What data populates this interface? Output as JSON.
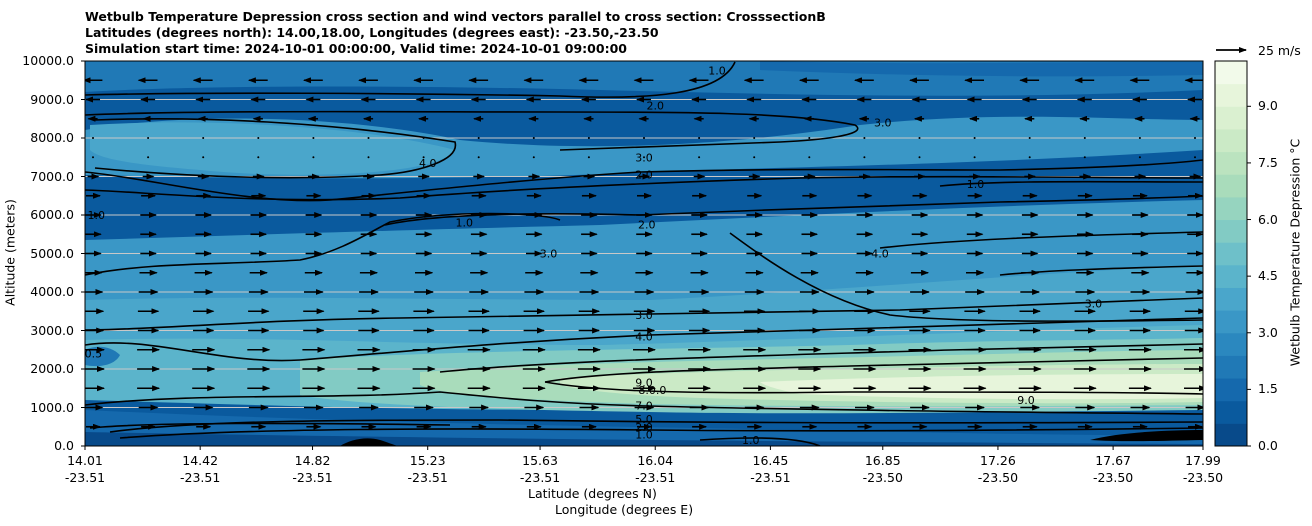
{
  "title": {
    "line1": "Wetbulb Temperature Depression cross section and wind vectors parallel to cross section: CrosssectionB",
    "line2": "Latitudes (degrees north): 14.00,18.00, Longitudes (degrees east): -23.50,-23.50",
    "line3": "Simulation start time: 2024-10-01 00:00:00, Valid time: 2024-10-01 09:00:00"
  },
  "colors": {
    "colormap": [
      "#084a8a",
      "#0a5a9e",
      "#1569ad",
      "#2079b6",
      "#2b88bf",
      "#3a97c6",
      "#4aa6cb",
      "#5bb4cb",
      "#6ec0c9",
      "#82cbc4",
      "#96d4bf",
      "#a9dcbb",
      "#bbe3bf",
      "#cbeac6",
      "#daf0d0",
      "#e7f5db",
      "#f2faea"
    ],
    "contour": "#000000",
    "grid": "#c8c8c8"
  },
  "vector_key": {
    "label": "25 m/s",
    "icon": "arrow-right-icon"
  },
  "chart_data": {
    "type": "heatmap",
    "subtype": "filled contour cross section with wind vectors",
    "xlabel": "Latitude (degrees N)",
    "xlabel2": "Longitude (degrees E)",
    "ylabel": "Altitude (meters)",
    "ylim": [
      0,
      10000
    ],
    "xlim": [
      14.01,
      17.99
    ],
    "yticks": [
      0,
      1000,
      2000,
      3000,
      4000,
      5000,
      6000,
      7000,
      8000,
      9000,
      10000
    ],
    "ytick_labels": [
      "0.0",
      "1000.0",
      "2000.0",
      "3000.0",
      "4000.0",
      "5000.0",
      "6000.0",
      "7000.0",
      "8000.0",
      "9000.0",
      "10000.0"
    ],
    "xticks": [
      {
        "lat": 14.01,
        "lat_label": "14.01",
        "lon_label": "-23.51"
      },
      {
        "lat": 14.42,
        "lat_label": "14.42",
        "lon_label": "-23.51"
      },
      {
        "lat": 14.82,
        "lat_label": "14.82",
        "lon_label": "-23.51"
      },
      {
        "lat": 15.23,
        "lat_label": "15.23",
        "lon_label": "-23.51"
      },
      {
        "lat": 15.63,
        "lat_label": "15.63",
        "lon_label": "-23.51"
      },
      {
        "lat": 16.04,
        "lat_label": "16.04",
        "lon_label": "-23.51"
      },
      {
        "lat": 16.45,
        "lat_label": "16.45",
        "lon_label": "-23.51"
      },
      {
        "lat": 16.85,
        "lat_label": "16.85",
        "lon_label": "-23.50"
      },
      {
        "lat": 17.26,
        "lat_label": "17.26",
        "lon_label": "-23.50"
      },
      {
        "lat": 17.67,
        "lat_label": "17.67",
        "lon_label": "-23.50"
      },
      {
        "lat": 17.99,
        "lat_label": "17.99",
        "lon_label": "-23.50"
      }
    ],
    "colorbar": {
      "label": "Wetbulb Temperature Depression °C",
      "range": [
        0,
        10.2
      ],
      "ticks": [
        0.0,
        1.5,
        3.0,
        4.5,
        6.0,
        7.5,
        9.0
      ],
      "tick_labels": [
        "0.0",
        "1.5",
        "3.0",
        "4.5",
        "6.0",
        "7.5",
        "9.0"
      ]
    },
    "contour_labels": [
      {
        "text": "1.0",
        "lat": 16.26,
        "alt": 9750
      },
      {
        "text": "2.0",
        "lat": 16.04,
        "alt": 8850
      },
      {
        "text": "3.0",
        "lat": 16.85,
        "alt": 8400
      },
      {
        "text": "4.0",
        "lat": 15.23,
        "alt": 7350
      },
      {
        "text": "3.0",
        "lat": 16.0,
        "alt": 7500
      },
      {
        "text": "2.0",
        "lat": 16.0,
        "alt": 7050
      },
      {
        "text": "1.0",
        "lat": 17.18,
        "alt": 6800
      },
      {
        "text": "1.0",
        "lat": 14.05,
        "alt": 6000
      },
      {
        "text": "1.0",
        "lat": 15.36,
        "alt": 5800
      },
      {
        "text": "2.0",
        "lat": 16.01,
        "alt": 5750
      },
      {
        "text": "3.0",
        "lat": 15.66,
        "alt": 5000
      },
      {
        "text": "4.0",
        "lat": 16.84,
        "alt": 5000
      },
      {
        "text": "3.0",
        "lat": 17.6,
        "alt": 3700
      },
      {
        "text": "3.0",
        "lat": 16.0,
        "alt": 3400
      },
      {
        "text": "4.0",
        "lat": 16.0,
        "alt": 2850
      },
      {
        "text": "0.5",
        "lat": 14.04,
        "alt": 2400
      },
      {
        "text": "9.0",
        "lat": 16.0,
        "alt": 1650
      },
      {
        "text": "8.0.0",
        "lat": 16.03,
        "alt": 1450
      },
      {
        "text": "7.0",
        "lat": 16.0,
        "alt": 1050
      },
      {
        "text": "9.0",
        "lat": 17.36,
        "alt": 1200
      },
      {
        "text": "5.0",
        "lat": 16.0,
        "alt": 700
      },
      {
        "text": "2.0",
        "lat": 16.0,
        "alt": 500
      },
      {
        "text": "1.0",
        "lat": 16.0,
        "alt": 300
      },
      {
        "text": "1.0",
        "lat": 16.38,
        "alt": 150
      }
    ],
    "wind_rows": [
      {
        "alt": 9500,
        "direction": "left",
        "strength": 0.8
      },
      {
        "alt": 9000,
        "direction": "left",
        "strength": 0.5
      },
      {
        "alt": 8500,
        "direction": "left",
        "strength": 0.2
      },
      {
        "alt": 8000,
        "direction": "calm",
        "strength": 0.05
      },
      {
        "alt": 7500,
        "direction": "calm",
        "strength": 0.05
      },
      {
        "alt": 7000,
        "direction": "right",
        "strength": 0.3
      },
      {
        "alt": 6500,
        "direction": "right",
        "strength": 0.5
      },
      {
        "alt": 6000,
        "direction": "right",
        "strength": 0.6
      },
      {
        "alt": 5500,
        "direction": "right",
        "strength": 0.6
      },
      {
        "alt": 5000,
        "direction": "right",
        "strength": 0.6
      },
      {
        "alt": 4500,
        "direction": "right",
        "strength": 0.7
      },
      {
        "alt": 4000,
        "direction": "right",
        "strength": 0.8
      },
      {
        "alt": 3500,
        "direction": "right",
        "strength": 0.9
      },
      {
        "alt": 3000,
        "direction": "right",
        "strength": 0.9
      },
      {
        "alt": 2500,
        "direction": "right",
        "strength": 1.0
      },
      {
        "alt": 2000,
        "direction": "right",
        "strength": 1.0
      },
      {
        "alt": 1500,
        "direction": "right",
        "strength": 1.0
      },
      {
        "alt": 1000,
        "direction": "right",
        "strength": 0.8
      },
      {
        "alt": 500,
        "direction": "right",
        "strength": 0.5
      }
    ]
  }
}
